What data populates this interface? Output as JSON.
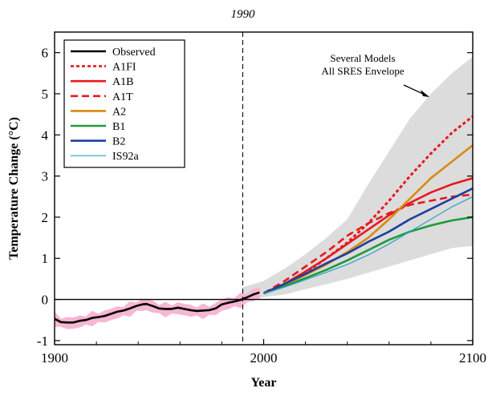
{
  "chart_data": {
    "type": "line",
    "title": "",
    "xlabel": "Year",
    "ylabel": "Temperature Change (°C)",
    "xlim": [
      1900,
      2100
    ],
    "ylim": [
      -1.1,
      6.5
    ],
    "x_ticks": [
      1900,
      2000,
      2100
    ],
    "y_ticks": [
      -1,
      0,
      1,
      2,
      3,
      4,
      5,
      6
    ],
    "grid": false,
    "legend_position": "top-left",
    "zero_line": true,
    "reference_line": {
      "x": 1990,
      "label": "1990"
    },
    "annotation": {
      "lines": [
        "Several Models",
        "All SRES Envelope"
      ]
    },
    "observed_uncertainty_color": "#f7b6d2",
    "envelope": {
      "color": "#dcdcdc",
      "x": [
        1990,
        2000,
        2010,
        2020,
        2030,
        2040,
        2050,
        2060,
        2070,
        2080,
        2090,
        2100
      ],
      "lower": [
        0.0,
        0.06,
        0.12,
        0.25,
        0.37,
        0.5,
        0.65,
        0.8,
        0.95,
        1.1,
        1.25,
        1.3
      ],
      "upper": [
        0.3,
        0.45,
        0.75,
        1.1,
        1.5,
        1.95,
        2.8,
        3.6,
        4.4,
        5.0,
        5.5,
        5.9
      ]
    },
    "series": [
      {
        "name": "Observed",
        "color": "#000000",
        "dash": "",
        "width": 2.6,
        "x": [
          1900,
          1903,
          1906,
          1909,
          1912,
          1915,
          1918,
          1921,
          1924,
          1927,
          1930,
          1933,
          1936,
          1939,
          1942,
          1944,
          1947,
          1950,
          1953,
          1956,
          1959,
          1962,
          1965,
          1968,
          1971,
          1974,
          1977,
          1980,
          1983,
          1986,
          1989,
          1992,
          1995,
          1998
        ],
        "y": [
          -0.47,
          -0.55,
          -0.56,
          -0.56,
          -0.52,
          -0.5,
          -0.45,
          -0.43,
          -0.4,
          -0.35,
          -0.3,
          -0.27,
          -0.22,
          -0.16,
          -0.12,
          -0.11,
          -0.16,
          -0.22,
          -0.23,
          -0.23,
          -0.2,
          -0.23,
          -0.26,
          -0.28,
          -0.27,
          -0.26,
          -0.22,
          -0.12,
          -0.08,
          -0.05,
          -0.01,
          0.05,
          0.12,
          0.17
        ]
      },
      {
        "name": "A1FI",
        "color": "#e8181c",
        "dash": "4,3",
        "width": 3,
        "x": [
          2000,
          2010,
          2020,
          2030,
          2040,
          2050,
          2060,
          2070,
          2080,
          2090,
          2100
        ],
        "y": [
          0.15,
          0.38,
          0.65,
          1.0,
          1.38,
          1.85,
          2.4,
          3.0,
          3.55,
          4.05,
          4.45
        ]
      },
      {
        "name": "A1B",
        "color": "#e8181c",
        "dash": "",
        "width": 2.6,
        "x": [
          2000,
          2010,
          2020,
          2030,
          2040,
          2050,
          2060,
          2070,
          2080,
          2090,
          2100
        ],
        "y": [
          0.15,
          0.38,
          0.68,
          1.0,
          1.35,
          1.7,
          2.05,
          2.35,
          2.6,
          2.8,
          2.95
        ]
      },
      {
        "name": "A1T",
        "color": "#e8181c",
        "dash": "9,5",
        "width": 2.6,
        "x": [
          2000,
          2010,
          2020,
          2030,
          2040,
          2050,
          2060,
          2070,
          2080,
          2090,
          2100
        ],
        "y": [
          0.15,
          0.45,
          0.8,
          1.15,
          1.55,
          1.85,
          2.1,
          2.3,
          2.4,
          2.5,
          2.55
        ]
      },
      {
        "name": "A2",
        "color": "#d98a10",
        "dash": "",
        "width": 2.6,
        "x": [
          2000,
          2010,
          2020,
          2030,
          2040,
          2050,
          2060,
          2070,
          2080,
          2090,
          2100
        ],
        "y": [
          0.15,
          0.35,
          0.6,
          0.85,
          1.15,
          1.5,
          1.95,
          2.45,
          2.95,
          3.35,
          3.75
        ]
      },
      {
        "name": "B1",
        "color": "#1f9a3a",
        "dash": "",
        "width": 2.6,
        "x": [
          2000,
          2010,
          2020,
          2030,
          2040,
          2050,
          2060,
          2070,
          2080,
          2090,
          2100
        ],
        "y": [
          0.15,
          0.32,
          0.52,
          0.72,
          0.95,
          1.2,
          1.45,
          1.65,
          1.8,
          1.92,
          2.0
        ]
      },
      {
        "name": "B2",
        "color": "#1d3fa0",
        "dash": "",
        "width": 2.6,
        "x": [
          2000,
          2010,
          2020,
          2030,
          2040,
          2050,
          2060,
          2070,
          2080,
          2090,
          2100
        ],
        "y": [
          0.15,
          0.38,
          0.62,
          0.88,
          1.12,
          1.4,
          1.65,
          1.95,
          2.2,
          2.45,
          2.7
        ]
      },
      {
        "name": "IS92a",
        "color": "#2a9fc8",
        "dash": "",
        "width": 1.2,
        "x": [
          2000,
          2010,
          2020,
          2030,
          2040,
          2050,
          2060,
          2070,
          2080,
          2090,
          2100
        ],
        "y": [
          0.15,
          0.3,
          0.48,
          0.66,
          0.85,
          1.08,
          1.35,
          1.65,
          1.95,
          2.25,
          2.5
        ]
      }
    ]
  }
}
